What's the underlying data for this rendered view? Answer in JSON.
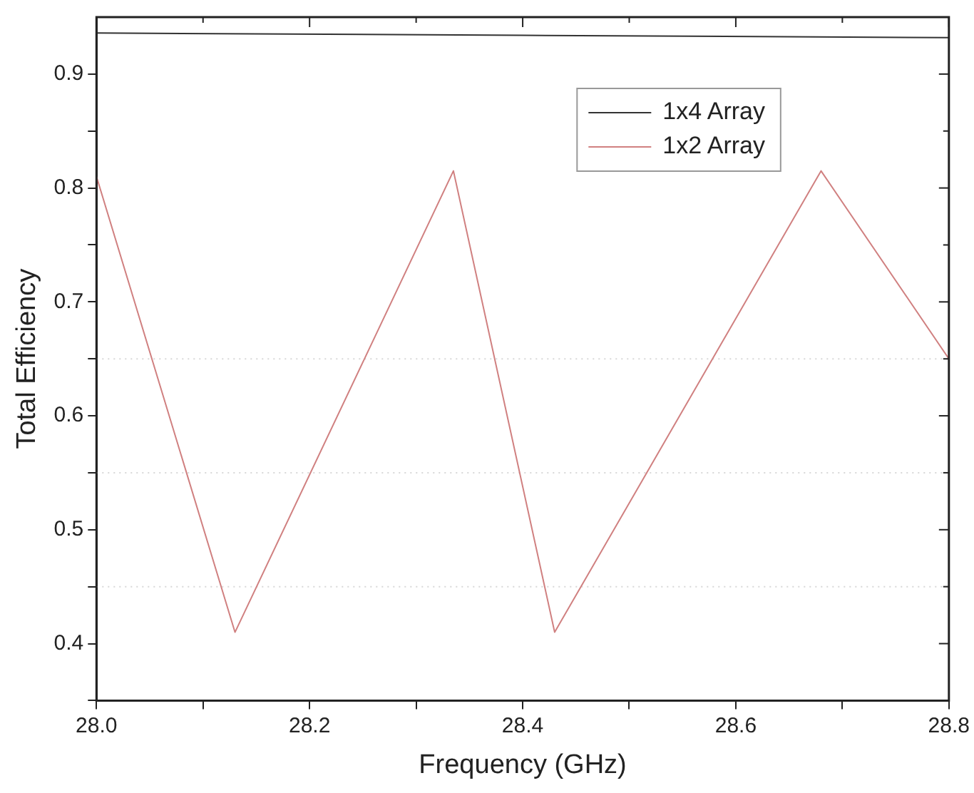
{
  "chart_data": {
    "type": "line",
    "xlabel": "Frequency (GHz)",
    "ylabel": "Total Efficiency",
    "xlim": [
      28.0,
      28.8
    ],
    "xticks": [
      {
        "value": 28.0,
        "label": "28.0"
      },
      {
        "value": 28.1,
        "label": null
      },
      28.2,
      {
        "value": 28.3,
        "label": null
      },
      28.4,
      {
        "value": 28.5,
        "label": null
      },
      28.6,
      {
        "value": 28.7,
        "label": null
      },
      28.8
    ],
    "ylim": [
      0.35,
      0.95
    ],
    "yticks": [
      {
        "value": 0.35,
        "label": null
      },
      0.4,
      {
        "value": 0.45,
        "label": null
      },
      0.5,
      {
        "value": 0.55,
        "label": null
      },
      0.6,
      {
        "value": 0.65,
        "label": null
      },
      0.7,
      {
        "value": 0.75,
        "label": null
      },
      0.8,
      {
        "value": 0.85,
        "label": null
      },
      0.9
    ],
    "series": [
      {
        "name": "1x4 Array",
        "color": "#333333",
        "x": [
          28.0,
          28.4,
          28.8
        ],
        "values": [
          0.936,
          0.934,
          0.932
        ]
      },
      {
        "name": "1x2 Array",
        "color": "#d08080",
        "x": [
          28.0,
          28.13,
          28.335,
          28.43,
          28.68,
          28.8
        ],
        "values": [
          0.81,
          0.41,
          0.815,
          0.41,
          0.815,
          0.65
        ]
      }
    ],
    "ref_lines": [
      {
        "axis": "y",
        "value": 0.45,
        "color": "#d8d8d8",
        "line_style": "dotted"
      },
      {
        "axis": "y",
        "value": 0.55,
        "color": "#d8d8d8",
        "line_style": "dotted"
      },
      {
        "axis": "y",
        "value": 0.65,
        "color": "#d8d8d8",
        "line_style": "dotted"
      }
    ],
    "grid": false,
    "legend": "top right",
    "marker": "none",
    "line_style": "solid"
  }
}
